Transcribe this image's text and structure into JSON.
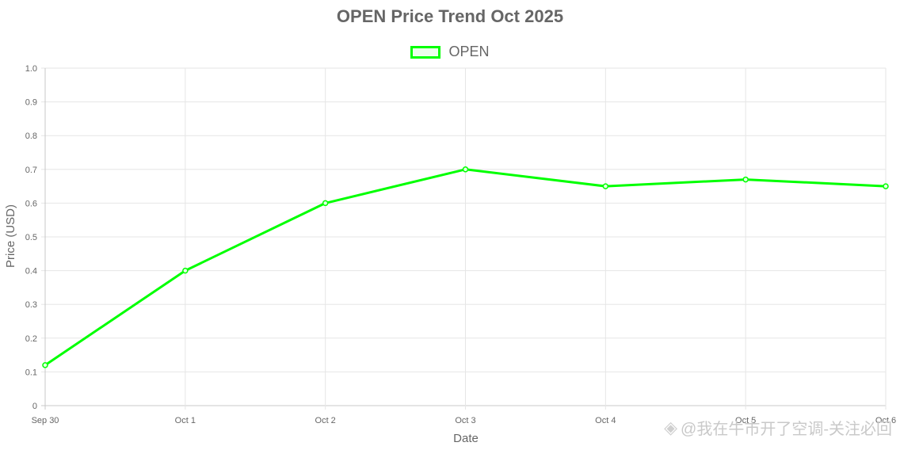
{
  "chart_data": {
    "type": "line",
    "title": "OPEN Price Trend Oct 2025",
    "xlabel": "Date",
    "ylabel": "Price (USD)",
    "categories": [
      "Sep 30",
      "Oct 1",
      "Oct 2",
      "Oct 3",
      "Oct 4",
      "Oct 5",
      "Oct 6"
    ],
    "series": [
      {
        "name": "OPEN",
        "values": [
          0.12,
          0.4,
          0.6,
          0.7,
          0.65,
          0.67,
          0.65
        ]
      }
    ],
    "ylim": [
      0,
      1.0
    ],
    "yticks": [
      "0",
      "0.1",
      "0.2",
      "0.3",
      "0.4",
      "0.5",
      "0.6",
      "0.7",
      "0.8",
      "0.9",
      "1.0"
    ],
    "grid": true,
    "legend_position": "top-center",
    "line_color": "#00ff00"
  },
  "watermark": {
    "icon": "diamond-icon",
    "text": "@我在牛市开了空调-关注必回"
  }
}
